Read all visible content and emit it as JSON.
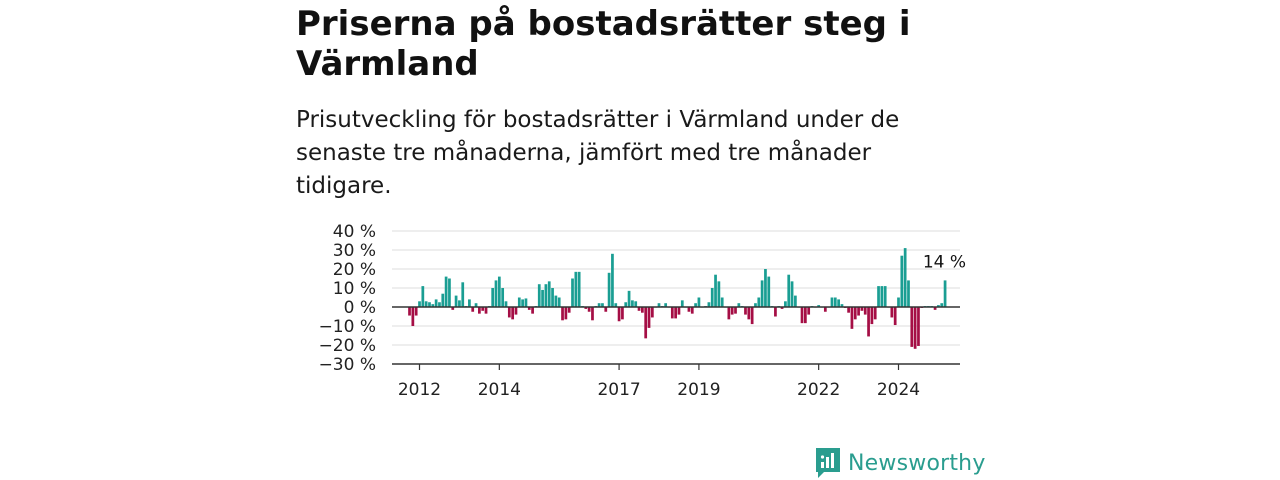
{
  "title": "Priserna på bostadsrätter steg i Värmland",
  "subtitle": "Prisutveckling för bostadsrätter i Värmland under de senaste tre månaderna, jämfört med tre månader tidigare.",
  "brand": {
    "name": "Newsworthy",
    "icon": "newsworthy-logo-icon",
    "color": "#2a9d8f"
  },
  "colors": {
    "positive": "#1a9e93",
    "negative": "#a50e45",
    "grid": "#dddddd",
    "axis": "#333333"
  },
  "chart_data": {
    "type": "bar",
    "title": "Priserna på bostadsrätter steg i Värmland",
    "xlabel": "",
    "ylabel": "",
    "ylim": [
      -30,
      40
    ],
    "yticks": [
      40,
      30,
      20,
      10,
      0,
      -10,
      -20,
      -30
    ],
    "ytick_labels": [
      "40 %",
      "30 %",
      "20 %",
      "10 %",
      "0 %",
      "−10 %",
      "−20 %",
      "−30 %"
    ],
    "xtick_labels": [
      {
        "label": "2012",
        "at": "2012-01"
      },
      {
        "label": "2014",
        "at": "2014-01"
      },
      {
        "label": "2017",
        "at": "2017-01"
      },
      {
        "label": "2019",
        "at": "2019-01"
      },
      {
        "label": "2022",
        "at": "2022-01"
      },
      {
        "label": "2024",
        "at": "2024-01"
      }
    ],
    "grid": true,
    "start": "2011-10",
    "frequency": "monthly",
    "last_value_label": "14 %",
    "values": [
      -4.5,
      -10,
      -4.5,
      3,
      11,
      3,
      2.5,
      1.5,
      4,
      2.5,
      7,
      16,
      15,
      -1.5,
      6,
      3.5,
      13,
      0.5,
      4,
      -2.5,
      2,
      -3.5,
      -2,
      -3.5,
      0.5,
      10,
      14,
      16,
      10,
      3,
      -5.5,
      -6.5,
      -4,
      5,
      4,
      4.5,
      -1.5,
      -3.5,
      0.5,
      12,
      9,
      12,
      13.5,
      10,
      6,
      5,
      -7,
      -6.5,
      -3,
      15,
      18.5,
      18.5,
      0.5,
      -1,
      -2.5,
      -7,
      0.5,
      2,
      2,
      -2.5,
      18,
      28,
      2,
      -7.5,
      -6.5,
      2.5,
      8.5,
      3.5,
      3,
      -2,
      -3,
      -16.5,
      -11,
      -5.5,
      0,
      2,
      0.5,
      2,
      0,
      -6,
      -6,
      -4,
      3.5,
      0,
      -2.5,
      -3.5,
      2,
      5,
      0,
      0.5,
      2.5,
      10,
      17,
      13.5,
      5,
      0,
      -6.5,
      -4,
      -3.5,
      2,
      0.5,
      -4,
      -6.5,
      -9,
      2,
      5,
      14,
      20,
      16,
      0.5,
      -5,
      0.5,
      -1,
      3,
      17,
      13.5,
      6,
      0,
      -8.5,
      -8.5,
      -4,
      0.5,
      0,
      1,
      0,
      -2.5,
      0,
      5,
      5,
      4,
      1.5,
      -0.5,
      -3,
      -11.5,
      -6.5,
      -4.5,
      -2,
      -4,
      -15.5,
      -9,
      -6.5,
      11,
      11,
      11,
      0,
      -5.5,
      -9.5,
      5,
      27,
      31,
      14,
      -21,
      -22,
      -20.5,
      -0.5,
      0.5,
      0.5,
      0.5,
      -1.5,
      1,
      2,
      14
    ]
  }
}
